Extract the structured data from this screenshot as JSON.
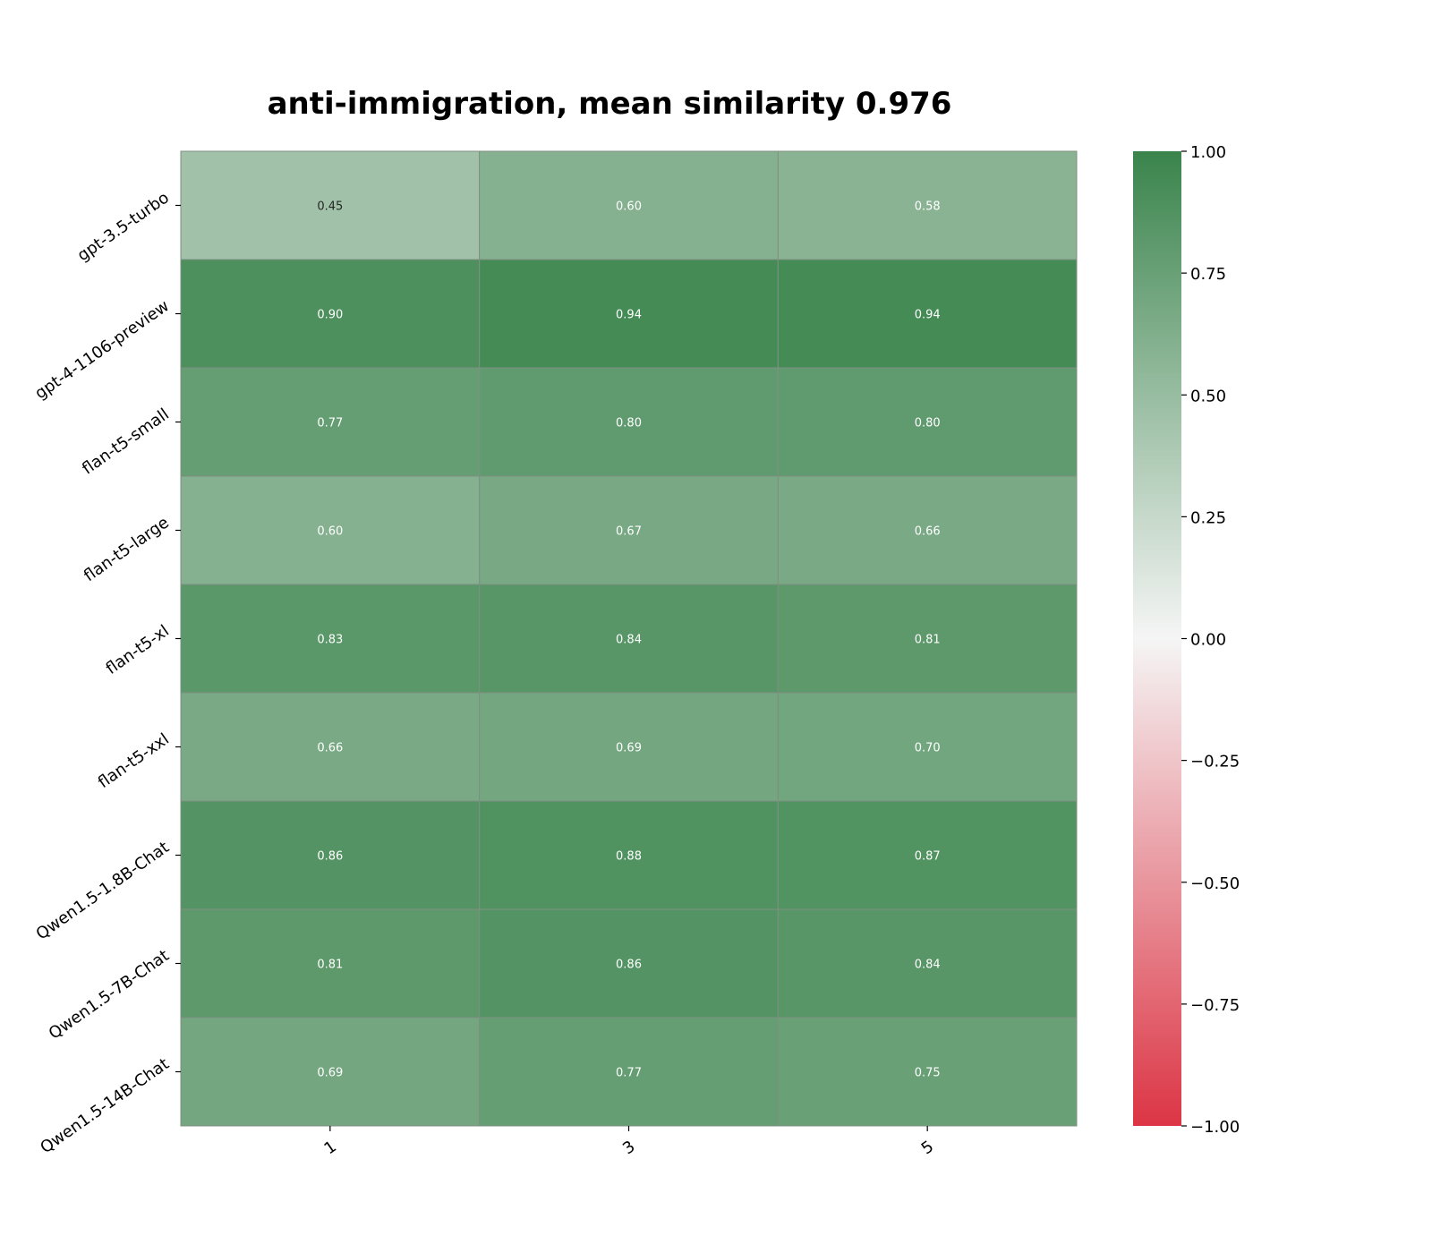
{
  "chart_data": {
    "type": "heatmap",
    "title": "anti-immigration, mean similarity 0.976",
    "rows": [
      "gpt-3.5-turbo",
      "gpt-4-1106-preview",
      "flan-t5-small",
      "flan-t5-large",
      "flan-t5-xl",
      "flan-t5-xxl",
      "Qwen1.5-1.8B-Chat",
      "Qwen1.5-7B-Chat",
      "Qwen1.5-14B-Chat"
    ],
    "columns": [
      "1",
      "3",
      "5"
    ],
    "values": [
      [
        0.45,
        0.6,
        0.58
      ],
      [
        0.9,
        0.94,
        0.94
      ],
      [
        0.77,
        0.8,
        0.8
      ],
      [
        0.6,
        0.67,
        0.66
      ],
      [
        0.83,
        0.84,
        0.81
      ],
      [
        0.66,
        0.69,
        0.7
      ],
      [
        0.86,
        0.88,
        0.87
      ],
      [
        0.81,
        0.86,
        0.84
      ],
      [
        0.69,
        0.77,
        0.75
      ]
    ],
    "value_format": "0.00",
    "colorbar": {
      "range": [
        -1.0,
        1.0
      ],
      "ticks": [
        "1.00",
        "0.75",
        "0.50",
        "0.25",
        "0.00",
        "−0.25",
        "−0.50",
        "−0.75",
        "−1.00"
      ],
      "colors": {
        "low": "#dc3545",
        "mid": "#f5f5f5",
        "high": "#3a844c"
      }
    },
    "grid": false
  }
}
